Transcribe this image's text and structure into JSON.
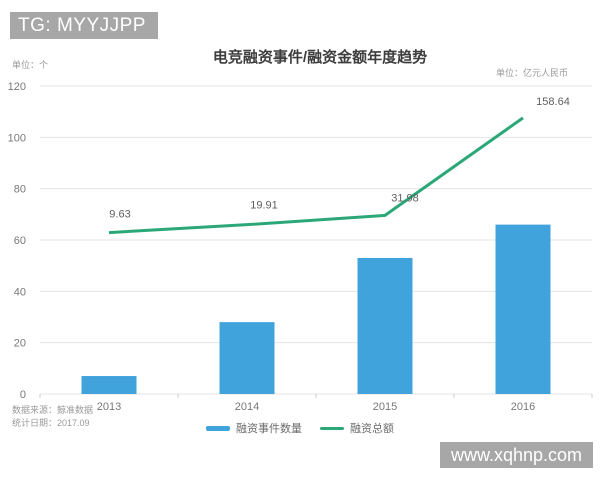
{
  "watermarks": {
    "top": "TG: MYYJJPP",
    "bottom": "www.xqhnp.com"
  },
  "chart_data": {
    "type": "bar",
    "combo": "bar+line dual-axis",
    "title": "电竞融资事件/融资金额年度趋势",
    "left_axis_unit": "单位：个",
    "right_axis_unit": "单位：亿元人民币",
    "categories": [
      "2013",
      "2014",
      "2015",
      "2016"
    ],
    "series": [
      {
        "name": "融资事件数量",
        "type": "bar",
        "axis": "left",
        "color": "#41a3dc",
        "values": [
          7,
          28,
          53,
          66
        ]
      },
      {
        "name": "融资总额",
        "type": "line",
        "axis": "right",
        "color": "#2ca878",
        "values": [
          9.63,
          19.91,
          31.98,
          158.64
        ],
        "labels": [
          "9.63",
          "19.91",
          "31.98",
          "158.64"
        ]
      }
    ],
    "y_ticks": [
      0,
      20,
      40,
      60,
      80,
      100,
      120
    ],
    "ylim": [
      0,
      120
    ],
    "y2lim": [
      -200,
      200
    ],
    "grid": true,
    "legend_position": "bottom"
  },
  "footer": {
    "source": "数据来源：鲸准数据",
    "date": "统计日期：2017.09"
  },
  "colors": {
    "bar": "#41a3dc",
    "line": "#2ca878",
    "grid": "#e5e5e5",
    "axis_text": "#787878",
    "label_text": "#5f5f5f",
    "watermark_bg": "#a7a7a7"
  }
}
